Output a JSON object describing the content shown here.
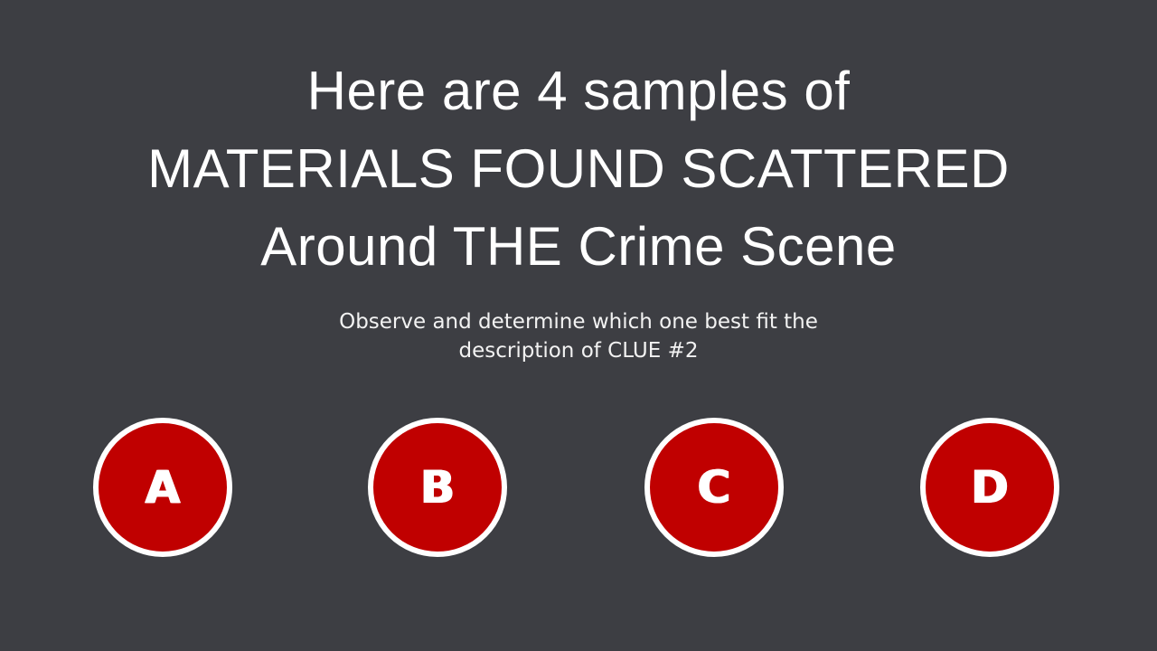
{
  "slide": {
    "title_lines": [
      "Here are 4 samples of",
      "MATERIALS FOUND SCATTERED",
      "Around THE Crime Scene"
    ],
    "subtitle_lines": [
      "Observe and determine which one best fit the",
      "description of CLUE #2"
    ],
    "options": [
      {
        "label": "A"
      },
      {
        "label": "B"
      },
      {
        "label": "C"
      },
      {
        "label": "D"
      }
    ]
  },
  "colors": {
    "background": "#3d3e43",
    "option_fill": "#c00000",
    "option_border": "#ffffff",
    "text": "#ffffff"
  }
}
